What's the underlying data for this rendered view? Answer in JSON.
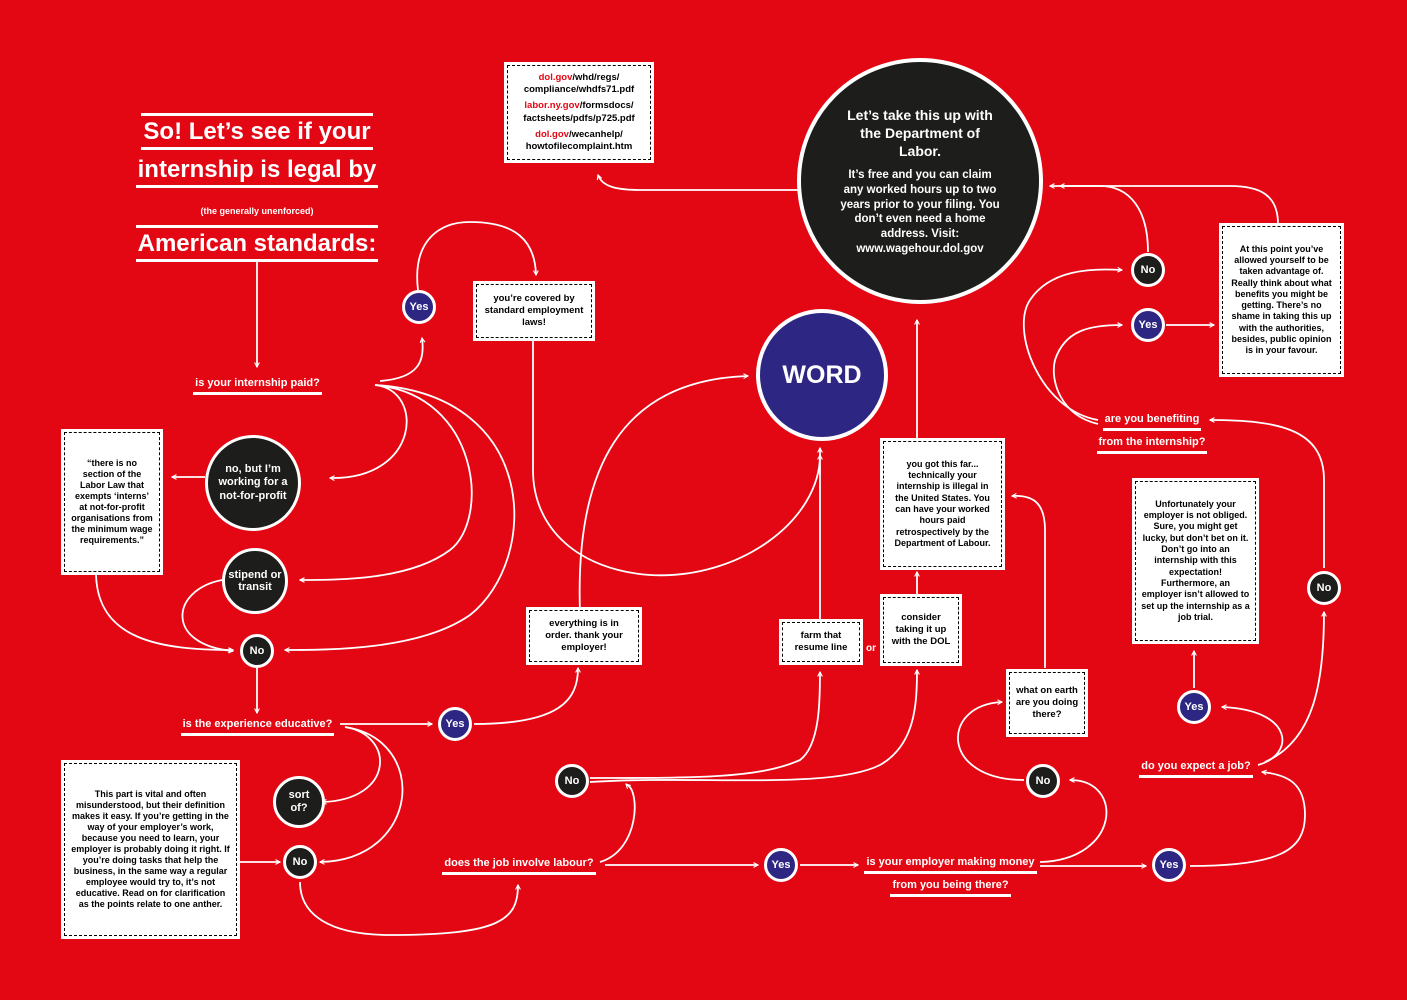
{
  "title": {
    "line1": "So! Let’s see if your",
    "line2": "internship is legal by",
    "subtitle": "(the generally unenforced)",
    "line3": "American standards:"
  },
  "links": {
    "l1_red": "dol.gov",
    "l1_rest": "/whd/regs/",
    "l1_line2": "compliance/whdfs71.pdf",
    "l2_red": "labor.ny.gov",
    "l2_rest": "/formsdocs/",
    "l2_line2": "factsheets/pdfs/p725.pdf",
    "l3_red": "dol.gov",
    "l3_rest": "/wecanhelp/",
    "l3_line2": "howtofilecomplaint.htm"
  },
  "dol": {
    "heading": "Let’s take this up with the Department of Labor.",
    "body": "It’s free and you can claim any worked hours up to two years prior to your filing. You don’t even need a home address. Visit: www.wagehour.dol.gov"
  },
  "word": "WORD",
  "questions": {
    "paid": "is your internship paid?",
    "educative": "is the experience educative?",
    "labour": "does the job involve labour?",
    "money_l1": "is your employer making money",
    "money_l2": "from you being there?",
    "benefit_l1": "are you benefiting",
    "benefit_l2": "from the internship?",
    "job": "do you expect a job?"
  },
  "circles": {
    "nonprofit": "no, but I’m working for a not-for-profit",
    "stipend": "stipend or transit",
    "sortof": "sort of?"
  },
  "answers": {
    "yes": "Yes",
    "no": "No"
  },
  "boxes": {
    "covered": "you’re covered by standard employment laws!",
    "nonprofit_note": "“there is no section of the Labor Law that exempts ‘interns’ at not-for-profit organisations from the minimum wage requirements.”",
    "educative_note": "This part is vital and often misunderstood, but their definition makes it easy. If you’re getting in the way of your employer’s work, because you need to learn, your employer is probably doing it right. If you’re doing tasks that help the business, in the same way a regular employee would try to, it’s not educative. Read on for clarification as the points relate to one anther.",
    "order": "everything is in order. thank your employer!",
    "farm": "farm that resume line",
    "consider": "consider taking it up with the DOL",
    "illegal": "you got this far... technically your internship is illegal in the United States. You can have your worked hours paid retrospectively by the Department of Labour.",
    "doing": "what on earth are you doing there?",
    "advantage": "At this point you’ve allowed yourself to be taken advantage of. Really think about what benefits you might be getting. There’s no shame in taking this up with the authorities, besides, public opinion is in your favour.",
    "unfortunately": "Unfortunately your employer is not obliged. Sure, you might get lucky, but don’t bet on it. Don’t go into an internship with this expectation! Furthermore, an employer isn’t allowed to set up the internship as a job trial."
  },
  "or": "or",
  "colors": {
    "background": "#e30613",
    "black_circle": "#1d1d1b",
    "blue_circle": "#2e2683",
    "line": "#ffffff"
  }
}
